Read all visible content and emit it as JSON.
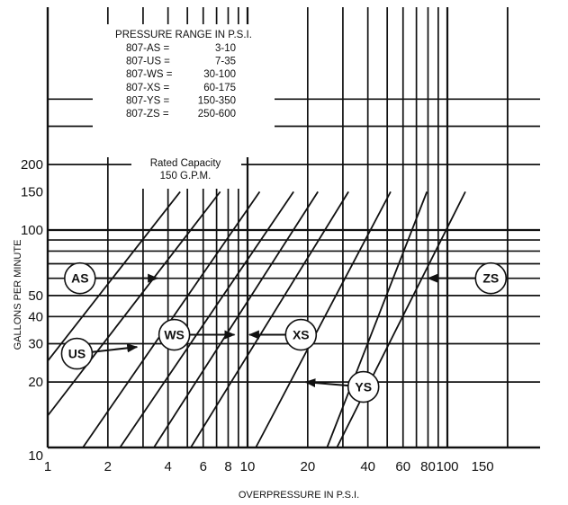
{
  "chart_data": {
    "type": "line",
    "xlabel": "OVERPRESSURE IN P.S.I.",
    "ylabel": "GALLONS PER MINUTE",
    "x_scale": "log",
    "y_scale": "log",
    "xlim": [
      1,
      200
    ],
    "ylim": [
      10,
      450
    ],
    "x_ticks": [
      {
        "value": 1,
        "label": "1"
      },
      {
        "value": 2,
        "label": "2"
      },
      {
        "value": 4,
        "label": "4"
      },
      {
        "value": 6,
        "label": "6"
      },
      {
        "value": 8,
        "label": "8"
      },
      {
        "value": 10,
        "label": "10"
      },
      {
        "value": 20,
        "label": "20"
      },
      {
        "value": 40,
        "label": "40"
      },
      {
        "value": 60,
        "label": "60"
      },
      {
        "value": 80,
        "label": "80"
      },
      {
        "value": 100,
        "label": "100"
      },
      {
        "value": 150,
        "label": "150"
      }
    ],
    "y_ticks": [
      {
        "value": 10,
        "label": "10"
      },
      {
        "value": 20,
        "label": "20"
      },
      {
        "value": 30,
        "label": "30"
      },
      {
        "value": 40,
        "label": "40"
      },
      {
        "value": 50,
        "label": "50"
      },
      {
        "value": 100,
        "label": "100"
      },
      {
        "value": 150,
        "label": "150"
      },
      {
        "value": 200,
        "label": "200"
      }
    ],
    "grid": true,
    "pressure_box": {
      "title": "PRESSURE RANGE IN P.S.I.",
      "rows": [
        {
          "model": "807-AS",
          "range": "3-10"
        },
        {
          "model": "807-US",
          "range": "7-35"
        },
        {
          "model": "807-WS",
          "range": "30-100"
        },
        {
          "model": "807-XS",
          "range": "60-175"
        },
        {
          "model": "807-YS",
          "range": "150-350"
        },
        {
          "model": "807-ZS",
          "range": "250-600"
        }
      ]
    },
    "capacity_note": {
      "line1": "Rated Capacity",
      "line2": "150 G.P.M."
    },
    "series_lines": [
      [
        [
          1,
          25
        ],
        [
          4.6,
          150
        ]
      ],
      [
        [
          1,
          14
        ],
        [
          7.3,
          150
        ]
      ],
      [
        [
          1.5,
          10
        ],
        [
          11.5,
          150
        ]
      ],
      [
        [
          2.3,
          10
        ],
        [
          17,
          150
        ]
      ],
      [
        [
          3.4,
          10
        ],
        [
          22.5,
          150
        ]
      ],
      [
        [
          5.2,
          10
        ],
        [
          32,
          150
        ]
      ],
      [
        [
          11,
          10
        ],
        [
          52,
          150
        ]
      ],
      [
        [
          25,
          10
        ],
        [
          79,
          150
        ]
      ],
      [
        [
          28,
          10
        ],
        [
          123,
          150
        ]
      ]
    ],
    "series": [
      {
        "name": "AS",
        "label_at": [
          1.45,
          60
        ],
        "arrow_to": [
          3.55,
          60
        ]
      },
      {
        "name": "US",
        "label_at": [
          1.4,
          27
        ],
        "arrow_to": [
          2.8,
          29
        ]
      },
      {
        "name": "WS",
        "label_at": [
          4.3,
          33
        ],
        "arrow_to": [
          8.6,
          33
        ]
      },
      {
        "name": "XS",
        "label_at": [
          18.5,
          33
        ],
        "arrow_to": [
          10.2,
          33
        ]
      },
      {
        "name": "YS",
        "label_at": [
          38,
          19
        ],
        "arrow_to": [
          19.5,
          20
        ]
      },
      {
        "name": "ZS",
        "label_at": [
          165,
          60
        ],
        "arrow_to": [
          80,
          60
        ]
      }
    ]
  }
}
